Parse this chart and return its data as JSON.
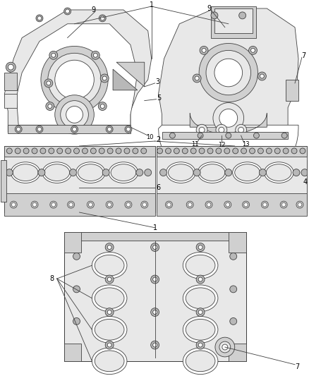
{
  "bg_color": "#ffffff",
  "line_color": "#404040",
  "fill_light": "#e8e8e8",
  "fill_mid": "#d0d0d0",
  "fill_dark": "#b8b8b8",
  "fill_white": "#ffffff",
  "fig_width": 4.38,
  "fig_height": 5.33,
  "dpi": 100,
  "lw": 0.6,
  "text_color": "#000000",
  "font_size": 6.5
}
